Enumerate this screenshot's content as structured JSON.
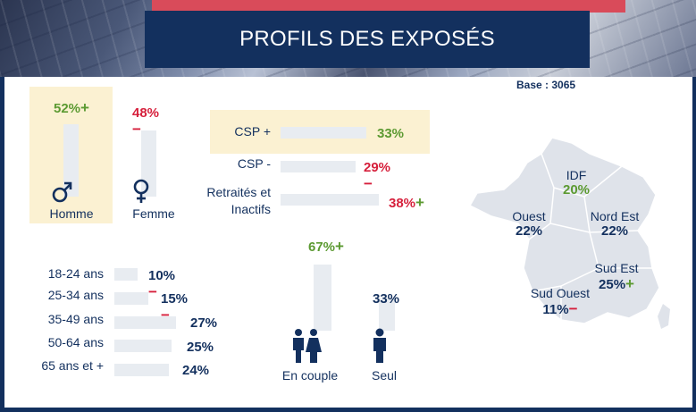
{
  "title": "PROFILS DES EXPOSÉS",
  "base": "Base : 3065",
  "colors": {
    "navy": "#13305e",
    "green": "#5c9a32",
    "red": "#d6203c",
    "highlight": "#fbf1d2",
    "bar": "#e8ecf1"
  },
  "chart_data": [
    {
      "type": "bar",
      "name": "sexe",
      "categories": [
        "Homme",
        "Femme"
      ],
      "values": [
        52,
        48
      ],
      "value_labels": [
        "52%",
        "48%"
      ],
      "signs": [
        "+",
        "−"
      ],
      "icons": [
        "male-icon",
        "female-icon"
      ]
    },
    {
      "type": "bar",
      "name": "csp",
      "categories": [
        "CSP +",
        "CSP -",
        "Retraités et Inactifs"
      ],
      "category_lines": [
        [
          "CSP +"
        ],
        [
          "CSP -"
        ],
        [
          "Retraités et",
          "Inactifs"
        ]
      ],
      "values": [
        33,
        29,
        38
      ],
      "value_labels": [
        "33%",
        "29%",
        "38%"
      ],
      "signs": [
        "",
        "−",
        "+"
      ]
    },
    {
      "type": "bar",
      "name": "age",
      "categories": [
        "18-24 ans",
        "25-34 ans",
        "35-49 ans",
        "50-64 ans",
        "65 ans et +"
      ],
      "values": [
        10,
        15,
        27,
        25,
        24
      ],
      "value_labels": [
        "10%",
        "15%",
        "27%",
        "25%",
        "24%"
      ],
      "signs": [
        "−",
        "−",
        "",
        "",
        ""
      ]
    },
    {
      "type": "bar",
      "name": "foyer",
      "categories": [
        "En couple",
        "Seul"
      ],
      "values": [
        67,
        33
      ],
      "value_labels": [
        "67%",
        "33%"
      ],
      "signs": [
        "+",
        ""
      ],
      "icons": [
        "couple-icon",
        "person-icon"
      ]
    },
    {
      "type": "map",
      "name": "regions",
      "regions": [
        {
          "label": "IDF",
          "value": 20,
          "value_label": "20%",
          "sign": ""
        },
        {
          "label": "Ouest",
          "value": 22,
          "value_label": "22%",
          "sign": ""
        },
        {
          "label": "Nord Est",
          "value": 22,
          "value_label": "22%",
          "sign": ""
        },
        {
          "label": "Sud Est",
          "value": 25,
          "value_label": "25%",
          "sign": "+"
        },
        {
          "label": "Sud Ouest",
          "value": 11,
          "value_label": "11%",
          "sign": "−"
        }
      ]
    }
  ]
}
